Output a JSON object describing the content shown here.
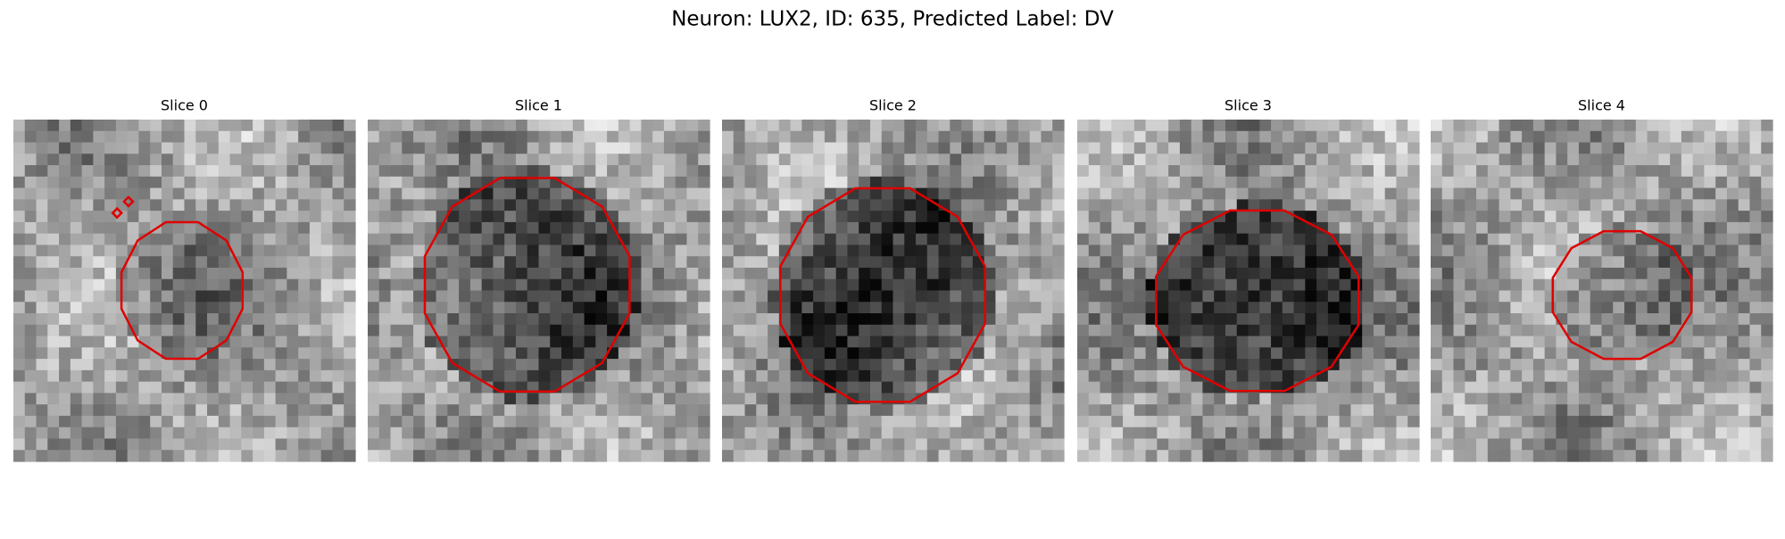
{
  "header": {
    "title": "Neuron: LUX2, ID: 635, Predicted Label: DV"
  },
  "panels": [
    {
      "title": "Slice 0"
    },
    {
      "title": "Slice 1"
    },
    {
      "title": "Slice 2"
    },
    {
      "title": "Slice 3"
    },
    {
      "title": "Slice 4"
    }
  ]
}
